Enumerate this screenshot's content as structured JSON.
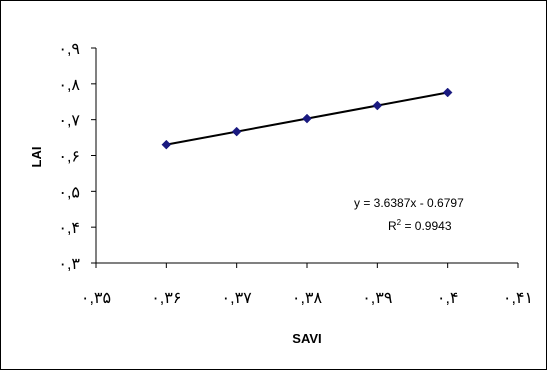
{
  "chart_data": {
    "type": "scatter",
    "title": "",
    "xlabel": "SAVI",
    "ylabel": "LAI",
    "xlim": [
      0.35,
      0.41
    ],
    "ylim": [
      0.3,
      0.9
    ],
    "x_ticks": [
      0.35,
      0.36,
      0.37,
      0.38,
      0.39,
      0.4,
      0.41
    ],
    "x_tick_labels": [
      "٠,٣۵",
      "٠,٣۶",
      "٠,٣٧",
      "٠,٣٨",
      "٠,٣٩",
      "٠,۴",
      "٠,۴١"
    ],
    "y_ticks": [
      0.3,
      0.4,
      0.5,
      0.6,
      0.7,
      0.8,
      0.9
    ],
    "y_tick_labels": [
      "٠,٣",
      "٠,۴",
      "٠,۵",
      "٠,۶",
      "٠,٧",
      "٠,٨",
      "٠,٩"
    ],
    "grid": false,
    "legend": "none",
    "series": [
      {
        "x": [
          0.36,
          0.37,
          0.38,
          0.39,
          0.4
        ],
        "y": [
          0.6303,
          0.6667,
          0.703,
          0.7394,
          0.7758
        ],
        "marker": "diamond",
        "color": "#1a1a80"
      }
    ],
    "trendline": {
      "type": "linear",
      "slope": 3.6387,
      "intercept": -0.6797,
      "color": "#000000",
      "equation": "y = 3.6387x - 0.6797",
      "r2_prefix": "R",
      "r2_sup": "2",
      "r2_value": " = 0.9943"
    }
  }
}
